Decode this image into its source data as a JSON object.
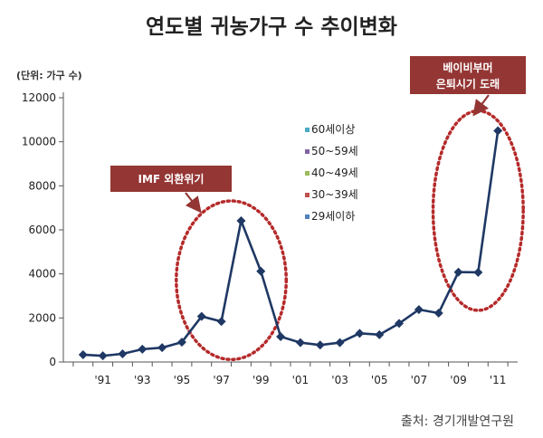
{
  "title": "연도별 귀농가구 수 추이변화",
  "unit_label": "(단위: 가구 수)",
  "source": "출처: 경기개발연구원",
  "colors": {
    "line": "#1f3864",
    "callout_box": "#943634",
    "ellipse": "#b52a2a",
    "axis": "#555555"
  },
  "chart_data": {
    "type": "line",
    "title": "연도별 귀농가구 수 추이변화",
    "ylabel": "(단위: 가구 수)",
    "xlabel": "",
    "ylim": [
      0,
      12000
    ],
    "yticks": [
      0,
      2000,
      4000,
      6000,
      8000,
      10000,
      12000
    ],
    "x_tick_labels": [
      {
        "year": 1991,
        "label": "'91"
      },
      {
        "year": 1993,
        "label": "'93"
      },
      {
        "year": 1995,
        "label": "'95"
      },
      {
        "year": 1997,
        "label": "'97"
      },
      {
        "year": 1999,
        "label": "'99"
      },
      {
        "year": 2001,
        "label": "'01"
      },
      {
        "year": 2003,
        "label": "'03"
      },
      {
        "year": 2005,
        "label": "'05"
      },
      {
        "year": 2007,
        "label": "'07"
      },
      {
        "year": 2009,
        "label": "'09"
      },
      {
        "year": 2011,
        "label": "'11"
      }
    ],
    "series": [
      {
        "x": [
          1990,
          1991,
          1992,
          1993,
          1994,
          1995,
          1996,
          1997,
          1998,
          1999,
          2000,
          2001,
          2002,
          2003,
          2004,
          2005,
          2006,
          2007,
          2008,
          2009,
          2010,
          2011
        ],
        "values": [
          330,
          280,
          370,
          580,
          650,
          900,
          2070,
          1840,
          6410,
          4120,
          1150,
          880,
          770,
          880,
          1300,
          1240,
          1750,
          2380,
          2220,
          4080,
          4070,
          10500
        ]
      }
    ],
    "legend": {
      "position": "center",
      "entries": [
        {
          "label": "60세이상",
          "color": "#4bacc6"
        },
        {
          "label": "50~59세",
          "color": "#8064a2"
        },
        {
          "label": "40~49세",
          "color": "#9bbb59"
        },
        {
          "label": "30~39세",
          "color": "#c0504d"
        },
        {
          "label": "29세이하",
          "color": "#4f81bd"
        }
      ]
    },
    "annotations": [
      {
        "label": "IMF 외환위기",
        "x_from": 1996,
        "x_to": 1999
      },
      {
        "label_lines": [
          "베이비부머",
          "은퇴시기 도래"
        ],
        "x_from": 2009,
        "x_to": 2011
      }
    ]
  }
}
